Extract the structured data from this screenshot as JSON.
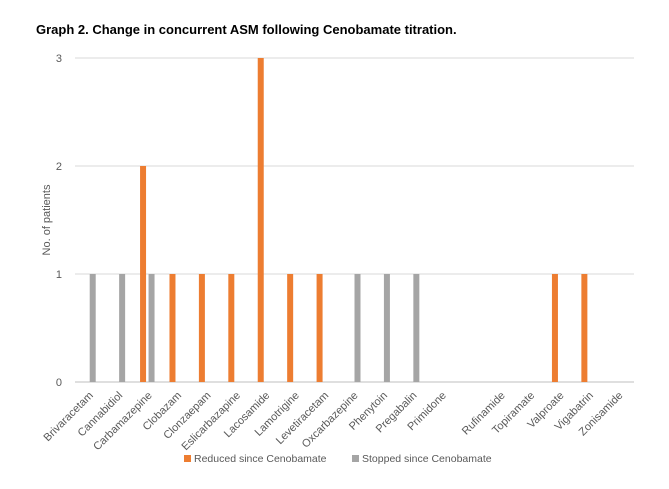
{
  "chart_data": {
    "type": "bar",
    "title": "Graph 2. Change in concurrent ASM following Cenobamate titration.",
    "xlabel": "",
    "ylabel": "No. of patients",
    "ylim": [
      0,
      3
    ],
    "yticks": [
      "0",
      "1",
      "2",
      "3"
    ],
    "grid": true,
    "legend_position": "bottom",
    "categories": [
      "Brivaracetam",
      "Cannabidiol",
      "Carbamazepine",
      "Clobazam",
      "Clonzaepam",
      "Eslicarbazapine",
      "Lacosamide",
      "Lamotrigine",
      "Levetiracetam",
      "Oxcarbazepine",
      "Phenytoin",
      "Pregabalin",
      "Primidone",
      "",
      "Rufinamide",
      "Topiramate",
      "Valproate",
      "Vigabatrin",
      "Zonisamide"
    ],
    "series": [
      {
        "name": "Reduced since Cenobamate",
        "color": "#ED7D31",
        "values": [
          0,
          0,
          2,
          1,
          1,
          1,
          3,
          1,
          1,
          0,
          0,
          0,
          0,
          0,
          0,
          0,
          1,
          1,
          0
        ]
      },
      {
        "name": "Stopped since Cenobamate",
        "color": "#A5A5A5",
        "values": [
          1,
          1,
          1,
          0,
          0,
          0,
          0,
          0,
          0,
          1,
          1,
          1,
          0,
          0,
          0,
          0,
          0,
          0,
          0
        ]
      }
    ]
  }
}
